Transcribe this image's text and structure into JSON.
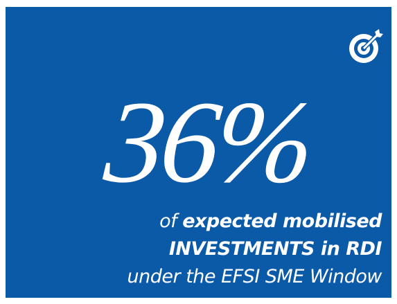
{
  "stat": "36%",
  "caption": [
    [
      {
        "text": "of ",
        "bold": false
      },
      {
        "text": "expected mobilised",
        "bold": true
      }
    ],
    [
      {
        "text": "INVESTMENTS in RDI",
        "bold": true
      }
    ],
    [
      {
        "text": "under the EFSI SME Window",
        "bold": false
      }
    ]
  ]
}
